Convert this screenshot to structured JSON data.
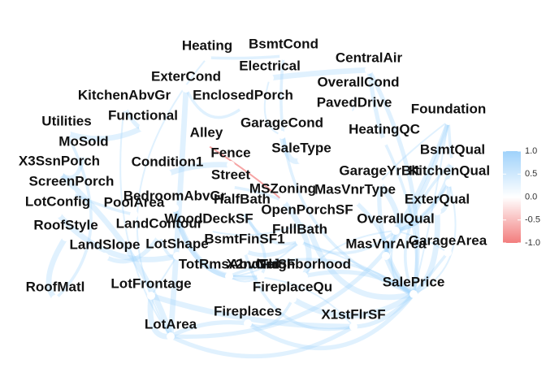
{
  "network": {
    "nodes": [
      {
        "id": "Heating",
        "label": "Heating"
      },
      {
        "id": "BsmtCond",
        "label": "BsmtCond"
      },
      {
        "id": "Electrical",
        "label": "Electrical"
      },
      {
        "id": "CentralAir",
        "label": "CentralAir"
      },
      {
        "id": "ExterCond",
        "label": "ExterCond"
      },
      {
        "id": "OverallCond",
        "label": "OverallCond"
      },
      {
        "id": "KitchenAbvGr",
        "label": "KitchenAbvGr"
      },
      {
        "id": "EnclosedPorch",
        "label": "EnclosedPorch"
      },
      {
        "id": "PavedDrive",
        "label": "PavedDrive"
      },
      {
        "id": "Foundation",
        "label": "Foundation"
      },
      {
        "id": "Utilities",
        "label": "Utilities"
      },
      {
        "id": "Functional",
        "label": "Functional"
      },
      {
        "id": "GarageCond",
        "label": "GarageCond"
      },
      {
        "id": "HeatingQC",
        "label": "HeatingQC"
      },
      {
        "id": "Alley",
        "label": "Alley"
      },
      {
        "id": "MoSold",
        "label": "MoSold"
      },
      {
        "id": "SaleType",
        "label": "SaleType"
      },
      {
        "id": "BsmtQual",
        "label": "BsmtQual"
      },
      {
        "id": "Fence",
        "label": "Fence"
      },
      {
        "id": "X3SsnPorch",
        "label": "X3SsnPorch"
      },
      {
        "id": "Condition1",
        "label": "Condition1"
      },
      {
        "id": "GarageYrBlt",
        "label": "GarageYrBlt"
      },
      {
        "id": "KitchenQual",
        "label": "KitchenQual"
      },
      {
        "id": "Street",
        "label": "Street"
      },
      {
        "id": "ScreenPorch",
        "label": "ScreenPorch"
      },
      {
        "id": "MSZoning",
        "label": "MSZoning"
      },
      {
        "id": "MasVnrType",
        "label": "MasVnrType"
      },
      {
        "id": "BedroomAbvGr",
        "label": "BedroomAbvGr"
      },
      {
        "id": "LotConfig",
        "label": "LotConfig"
      },
      {
        "id": "PoolArea",
        "label": "PoolArea"
      },
      {
        "id": "HalfBath",
        "label": "HalfBath"
      },
      {
        "id": "ExterQual",
        "label": "ExterQual"
      },
      {
        "id": "OpenPorchSF",
        "label": "OpenPorchSF"
      },
      {
        "id": "WoodDeckSF",
        "label": "WoodDeckSF"
      },
      {
        "id": "LandContour",
        "label": "LandContour"
      },
      {
        "id": "RoofStyle",
        "label": "RoofStyle"
      },
      {
        "id": "OverallQual",
        "label": "OverallQual"
      },
      {
        "id": "FullBath",
        "label": "FullBath"
      },
      {
        "id": "BsmtFinSF1",
        "label": "BsmtFinSF1"
      },
      {
        "id": "GarageArea",
        "label": "GarageArea"
      },
      {
        "id": "LandSlope",
        "label": "LandSlope"
      },
      {
        "id": "LotShape",
        "label": "LotShape"
      },
      {
        "id": "MasVnrArea",
        "label": "MasVnrArea"
      },
      {
        "id": "TotRmsAbvGrd",
        "label": "TotRmsAbvGrd"
      },
      {
        "id": "X2ndFlrSF",
        "label": "X2ndFlrSF"
      },
      {
        "id": "Neighborhood",
        "label": "Neighborhood"
      },
      {
        "id": "SalePrice",
        "label": "SalePrice"
      },
      {
        "id": "RoofMatl",
        "label": "RoofMatl"
      },
      {
        "id": "LotFrontage",
        "label": "LotFrontage"
      },
      {
        "id": "FireplaceQu",
        "label": "FireplaceQu"
      },
      {
        "id": "Fireplaces",
        "label": "Fireplaces"
      },
      {
        "id": "X1stFlrSF",
        "label": "X1stFlrSF"
      },
      {
        "id": "LotArea",
        "label": "LotArea"
      }
    ]
  },
  "legend": {
    "ticks": [
      "1.0",
      "0.5",
      "0.0",
      "-0.5",
      "-1.0"
    ],
    "tick_values": [
      1.0,
      0.5,
      0.0,
      -0.5,
      -1.0
    ],
    "range": [
      -1.0,
      1.0
    ],
    "colors": {
      "high": "#9fd2fb",
      "mid": "#ffffff",
      "low": "#f27d7d"
    }
  },
  "colors": {
    "positive_edge": "#9fd2fb",
    "negative_edge": "#f27d7d",
    "node_dot": "#ffffff"
  }
}
